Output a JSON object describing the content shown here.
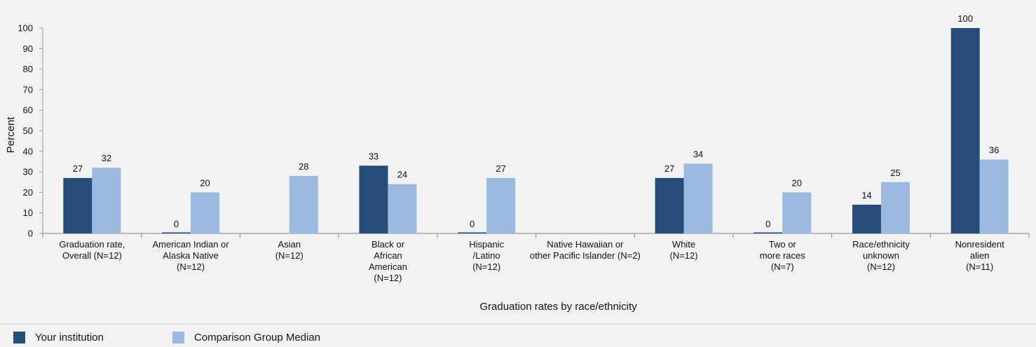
{
  "chart_data": {
    "type": "bar",
    "title": "",
    "xlabel": "Graduation rates by race/ethnicity",
    "ylabel": "Percent",
    "ylim": [
      0,
      100
    ],
    "yticks": [
      0,
      10,
      20,
      30,
      40,
      50,
      60,
      70,
      80,
      90,
      100
    ],
    "grid": false,
    "legend_position": "bottom",
    "categories": [
      [
        "Graduation rate,",
        "Overall (N=12)"
      ],
      [
        "American Indian or",
        "Alaska Native",
        "(N=12)"
      ],
      [
        "Asian",
        "(N=12)"
      ],
      [
        "Black or",
        "African",
        "American",
        "(N=12)"
      ],
      [
        "Hispanic",
        "/Latino",
        "(N=12)"
      ],
      [
        "Native Hawaiian or",
        "other Pacific Islander (N=2)"
      ],
      [
        "White",
        "(N=12)"
      ],
      [
        "Two or",
        "more races",
        "(N=7)"
      ],
      [
        "Race/ethnicity",
        "unknown",
        "(N=12)"
      ],
      [
        "Nonresident",
        "alien",
        "(N=11)"
      ]
    ],
    "series": [
      {
        "name": "Your institution",
        "color": "#264d79",
        "values": [
          27,
          0,
          null,
          33,
          0,
          null,
          27,
          0,
          14,
          100
        ]
      },
      {
        "name": "Comparison Group Median",
        "color": "#9cbadf",
        "values": [
          32,
          20,
          28,
          24,
          27,
          null,
          34,
          20,
          25,
          36
        ]
      }
    ]
  }
}
